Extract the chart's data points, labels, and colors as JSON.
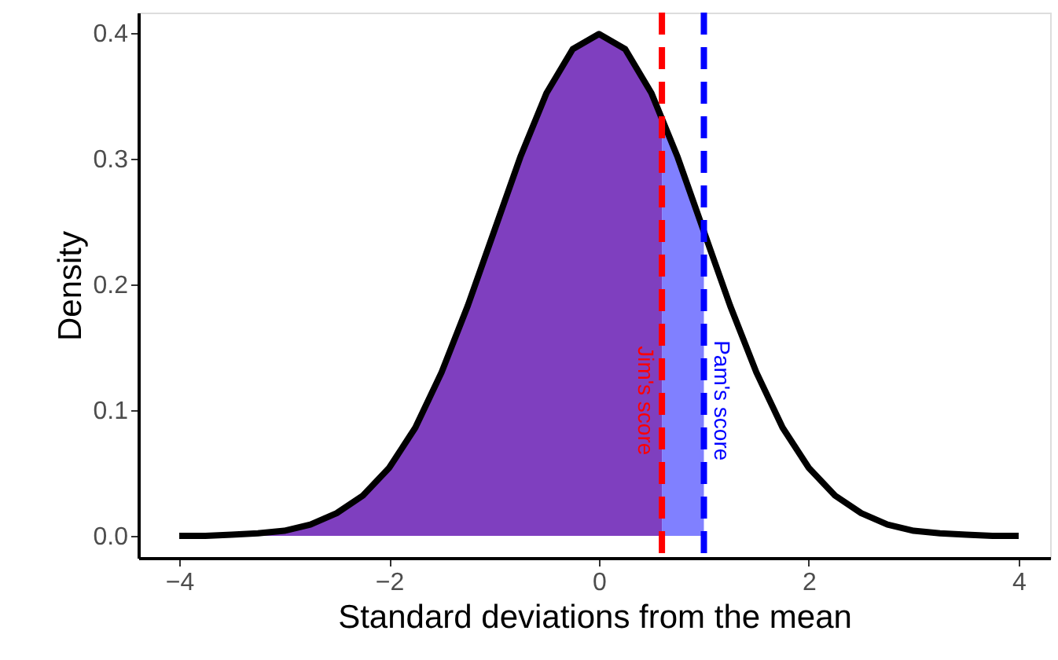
{
  "chart_data": {
    "type": "line",
    "xlabel": "Standard deviations from the mean",
    "ylabel": "Density",
    "xlim": [
      -4.39,
      4.3
    ],
    "ylim": [
      -0.0175,
      0.416
    ],
    "xticks": [
      {
        "value": -4,
        "label": "−4"
      },
      {
        "value": -2,
        "label": "−2"
      },
      0,
      2,
      4
    ],
    "yticks": [
      {
        "value": 0,
        "label": "0.0"
      },
      {
        "value": 0.1,
        "label": "0.1"
      },
      {
        "value": 0.2,
        "label": "0.2"
      },
      {
        "value": 0.3,
        "label": "0.3"
      },
      {
        "value": 0.4,
        "label": "0.4"
      }
    ],
    "series": [
      {
        "type": "area",
        "color": "#7f3fbf",
        "x": [
          -4,
          -3.75,
          -3.5,
          -3.25,
          -3,
          -2.75,
          -2.5,
          -2.25,
          -2,
          -1.75,
          -1.5,
          -1.25,
          -1,
          -0.75,
          -0.5,
          -0.25,
          0,
          0.25,
          0.5,
          0.6
        ],
        "values": [
          0.0,
          0.0,
          0.001,
          0.002,
          0.004,
          0.009,
          0.018,
          0.032,
          0.054,
          0.086,
          0.13,
          0.183,
          0.242,
          0.301,
          0.352,
          0.387,
          0.399,
          0.387,
          0.352,
          0.333
        ]
      },
      {
        "type": "area",
        "color": "#8080ff",
        "x": [
          0.6,
          0.75,
          1.0
        ],
        "values": [
          0.333,
          0.301,
          0.242
        ]
      },
      {
        "color": "#000000",
        "x": [
          -4,
          -3.75,
          -3.5,
          -3.25,
          -3,
          -2.75,
          -2.5,
          -2.25,
          -2,
          -1.75,
          -1.5,
          -1.25,
          -1,
          -0.75,
          -0.5,
          -0.25,
          0,
          0.25,
          0.5,
          0.75,
          1,
          1.25,
          1.5,
          1.75,
          2,
          2.25,
          2.5,
          2.75,
          3,
          3.25,
          3.5,
          3.75,
          4
        ],
        "values": [
          0.0,
          0.0,
          0.001,
          0.002,
          0.004,
          0.009,
          0.018,
          0.032,
          0.054,
          0.086,
          0.13,
          0.183,
          0.242,
          0.301,
          0.352,
          0.387,
          0.399,
          0.387,
          0.352,
          0.301,
          0.242,
          0.183,
          0.13,
          0.086,
          0.054,
          0.032,
          0.018,
          0.009,
          0.004,
          0.002,
          0.001,
          0.0,
          0.0
        ]
      }
    ],
    "ref_lines": [
      {
        "axis": "x",
        "value": 0.6,
        "label": "Jim's score",
        "color": "#ff0000",
        "line_style": "dashed"
      },
      {
        "axis": "x",
        "value": 1.0,
        "label": "Pam's score",
        "color": "#0000ff",
        "line_style": "dashed"
      }
    ]
  }
}
